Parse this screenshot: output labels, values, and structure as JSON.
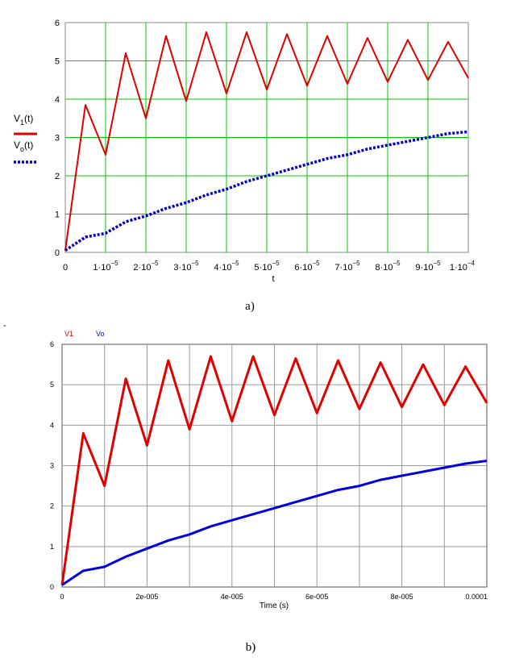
{
  "chart_data": [
    {
      "type": "line",
      "caption": "a)",
      "xlabel": "t",
      "xlim": [
        0,
        0.0001
      ],
      "ylim": [
        0,
        6
      ],
      "grid": true,
      "grid_color": "#00c800",
      "legend_placement": "left",
      "y_ticks": [
        "0",
        "1",
        "2",
        "3",
        "4",
        "5",
        "6"
      ],
      "x_ticks": [
        {
          "mant": "0",
          "exp": ""
        },
        {
          "mant": "1·10",
          "exp": "−5"
        },
        {
          "mant": "2·10",
          "exp": "−5"
        },
        {
          "mant": "3·10",
          "exp": "−5"
        },
        {
          "mant": "4·10",
          "exp": "−5"
        },
        {
          "mant": "5·10",
          "exp": "−5"
        },
        {
          "mant": "6·10",
          "exp": "−5"
        },
        {
          "mant": "7·10",
          "exp": "−5"
        },
        {
          "mant": "8·10",
          "exp": "−5"
        },
        {
          "mant": "9·10",
          "exp": "−5"
        },
        {
          "mant": "1·10",
          "exp": "−4"
        }
      ],
      "series": [
        {
          "name": "V1(t)",
          "name_main": "V",
          "name_sub": "1",
          "name_tail": "(t)",
          "color": "#e00000",
          "style": "solid",
          "x": [
            0,
            5e-06,
            1e-05,
            1.5e-05,
            2e-05,
            2.5e-05,
            3e-05,
            3.5e-05,
            4e-05,
            4.5e-05,
            5e-05,
            5.5e-05,
            6e-05,
            6.5e-05,
            7e-05,
            7.5e-05,
            8e-05,
            8.5e-05,
            9e-05,
            9.5e-05,
            0.0001
          ],
          "y": [
            0.05,
            3.85,
            2.55,
            5.2,
            3.5,
            5.65,
            3.95,
            5.75,
            4.15,
            5.75,
            4.25,
            5.7,
            4.35,
            5.65,
            4.4,
            5.6,
            4.45,
            5.55,
            4.5,
            5.5,
            4.55
          ]
        },
        {
          "name": "Vo(t)",
          "name_main": "V",
          "name_sub": "o",
          "name_tail": "(t)",
          "color": "#0000c8",
          "style": "dotted",
          "x": [
            0,
            5e-06,
            1e-05,
            1.5e-05,
            2e-05,
            2.5e-05,
            3e-05,
            3.5e-05,
            4e-05,
            4.5e-05,
            5e-05,
            5.5e-05,
            6e-05,
            6.5e-05,
            7e-05,
            7.5e-05,
            8e-05,
            8.5e-05,
            9e-05,
            9.5e-05,
            0.0001
          ],
          "y": [
            0.05,
            0.4,
            0.5,
            0.8,
            0.95,
            1.15,
            1.3,
            1.5,
            1.65,
            1.85,
            2.0,
            2.15,
            2.3,
            2.45,
            2.55,
            2.7,
            2.8,
            2.9,
            3.0,
            3.1,
            3.15
          ]
        }
      ]
    },
    {
      "type": "line",
      "caption": "b)",
      "xlabel": "Time (s)",
      "xlim": [
        0,
        0.0001
      ],
      "ylim": [
        0,
        6
      ],
      "grid": true,
      "grid_color": "#9a9a9a",
      "legend_placement": "top-left",
      "y_ticks": [
        "0",
        "1",
        "2",
        "3",
        "4",
        "5",
        "6"
      ],
      "x_ticks": [
        {
          "label": "0",
          "value": 0
        },
        {
          "label": "2e-005",
          "value": 2e-05
        },
        {
          "label": "4e-005",
          "value": 4e-05
        },
        {
          "label": "6e-005",
          "value": 6e-05
        },
        {
          "label": "8e-005",
          "value": 8e-05
        },
        {
          "label": "0.0001",
          "value": 0.0001
        }
      ],
      "series": [
        {
          "name": "V1",
          "color": "#e00000",
          "x": [
            0,
            5e-06,
            1e-05,
            1.5e-05,
            2e-05,
            2.5e-05,
            3e-05,
            3.5e-05,
            4e-05,
            4.5e-05,
            5e-05,
            5.5e-05,
            6e-05,
            6.5e-05,
            7e-05,
            7.5e-05,
            8e-05,
            8.5e-05,
            9e-05,
            9.5e-05,
            0.0001
          ],
          "y": [
            0.05,
            3.8,
            2.5,
            5.15,
            3.5,
            5.6,
            3.9,
            5.7,
            4.1,
            5.7,
            4.25,
            5.65,
            4.3,
            5.6,
            4.4,
            5.55,
            4.45,
            5.5,
            4.5,
            5.45,
            4.55
          ]
        },
        {
          "name": "Vo",
          "color": "#0000e0",
          "x": [
            0,
            5e-06,
            1e-05,
            1.5e-05,
            2e-05,
            2.5e-05,
            3e-05,
            3.5e-05,
            4e-05,
            4.5e-05,
            5e-05,
            5.5e-05,
            6e-05,
            6.5e-05,
            7e-05,
            7.5e-05,
            8e-05,
            8.5e-05,
            9e-05,
            9.5e-05,
            0.0001
          ],
          "y": [
            0.05,
            0.4,
            0.5,
            0.75,
            0.95,
            1.15,
            1.3,
            1.5,
            1.65,
            1.8,
            1.95,
            2.1,
            2.25,
            2.4,
            2.5,
            2.65,
            2.75,
            2.85,
            2.95,
            3.05,
            3.12
          ]
        }
      ]
    }
  ],
  "stray_mark": "-"
}
